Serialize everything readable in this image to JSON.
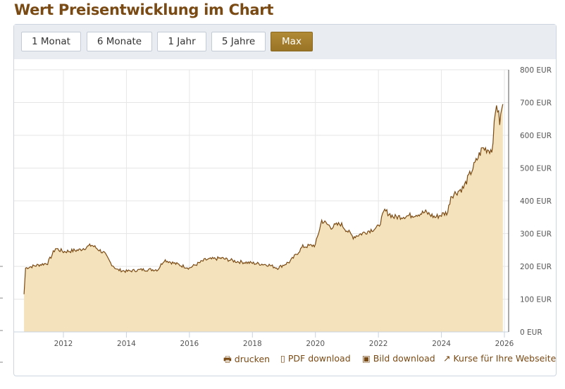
{
  "title": "Wert Preisentwicklung im Chart",
  "ranges": [
    {
      "label": "1 Monat"
    },
    {
      "label": "6 Monate"
    },
    {
      "label": "1 Jahr"
    },
    {
      "label": "5 Jahre"
    },
    {
      "label": "Max",
      "active": true
    }
  ],
  "links": {
    "print": "drucken",
    "pdf": "PDF download",
    "image": "Bild download",
    "embed": "Kurse für Ihre Webseite"
  },
  "colors": {
    "line": "#7a4a14",
    "fill": "#f3e2bb",
    "accent": "#a5802f"
  },
  "chart_data": {
    "type": "area",
    "title": "",
    "xlim": [
      2010.6,
      2026.1
    ],
    "ylim": [
      0,
      800
    ],
    "x_ticks": [
      "2012",
      "2014",
      "2016",
      "2018",
      "2020",
      "2022",
      "2024",
      "2026"
    ],
    "y_ticks": [
      "0 EUR",
      "100 EUR",
      "200 EUR",
      "300 EUR",
      "400 EUR",
      "500 EUR",
      "600 EUR",
      "700 EUR",
      "800 EUR"
    ],
    "y_axis_position": "right",
    "grid": true,
    "x": [
      2010.75,
      2010.8,
      2011.0,
      2011.5,
      2011.75,
      2012.0,
      2012.5,
      2012.9,
      2013.3,
      2013.5,
      2013.7,
      2014.0,
      2014.5,
      2015.0,
      2015.2,
      2015.5,
      2016.0,
      2016.5,
      2017.0,
      2017.5,
      2018.0,
      2018.5,
      2018.8,
      2019.2,
      2019.6,
      2020.0,
      2020.2,
      2020.5,
      2020.8,
      2021.2,
      2021.6,
      2022.0,
      2022.2,
      2022.5,
      2023.0,
      2023.5,
      2023.8,
      2024.2,
      2024.3,
      2024.7,
      2025.0,
      2025.3,
      2025.6,
      2025.75,
      2025.85,
      2025.95
    ],
    "y": [
      115,
      195,
      200,
      210,
      255,
      245,
      250,
      265,
      240,
      210,
      190,
      185,
      190,
      190,
      220,
      210,
      195,
      220,
      225,
      215,
      210,
      205,
      195,
      215,
      260,
      265,
      340,
      320,
      330,
      290,
      305,
      320,
      370,
      350,
      355,
      365,
      350,
      365,
      415,
      440,
      500,
      560,
      555,
      700,
      640,
      695
    ]
  }
}
